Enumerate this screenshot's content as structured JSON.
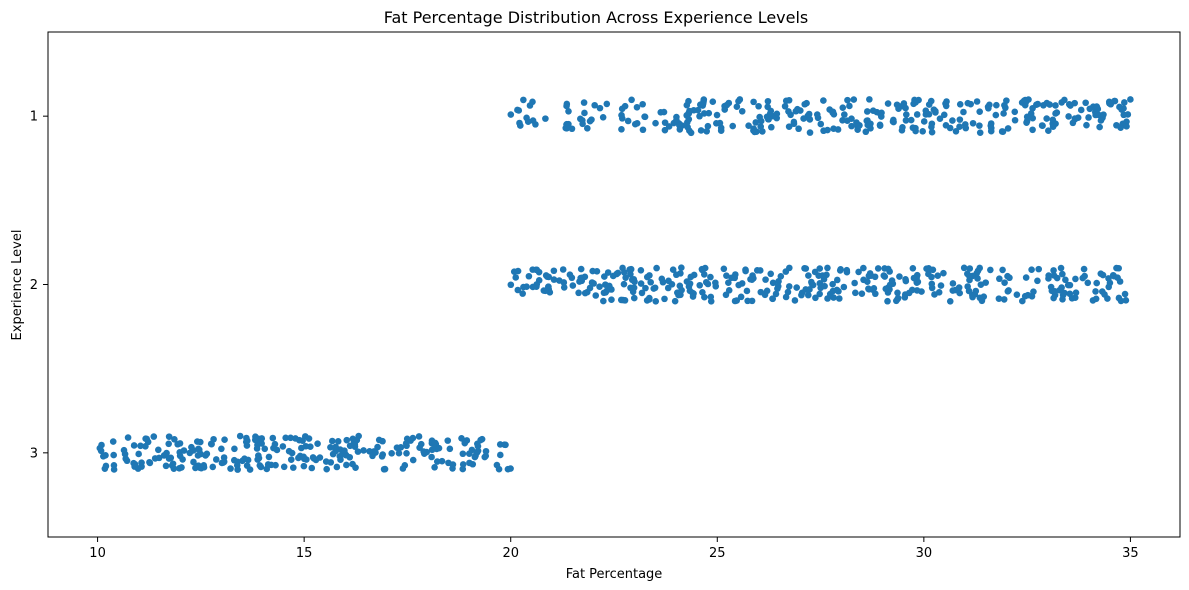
{
  "chart_data": {
    "type": "scatter",
    "title": "Fat Percentage Distribution Across Experience Levels",
    "xlabel": "Fat Percentage",
    "ylabel": "Experience Level",
    "xlim": [
      8.8,
      36.2
    ],
    "ylim": [
      3.5,
      0.5
    ],
    "x_ticks": [
      "10",
      "15",
      "20",
      "25",
      "30",
      "35"
    ],
    "y_ticks": [
      "1",
      "2",
      "3"
    ],
    "grid": false,
    "legend": "none",
    "marker_color": "#1f77b4",
    "series": [
      {
        "category": 1,
        "x_range": [
          20.0,
          35.0
        ],
        "count": 330,
        "jitter": 0.1
      },
      {
        "category": 2,
        "x_range": [
          20.0,
          35.0
        ],
        "count": 375,
        "jitter": 0.1
      },
      {
        "category": 3,
        "x_range": [
          10.0,
          20.0
        ],
        "count": 260,
        "jitter": 0.1
      }
    ]
  }
}
